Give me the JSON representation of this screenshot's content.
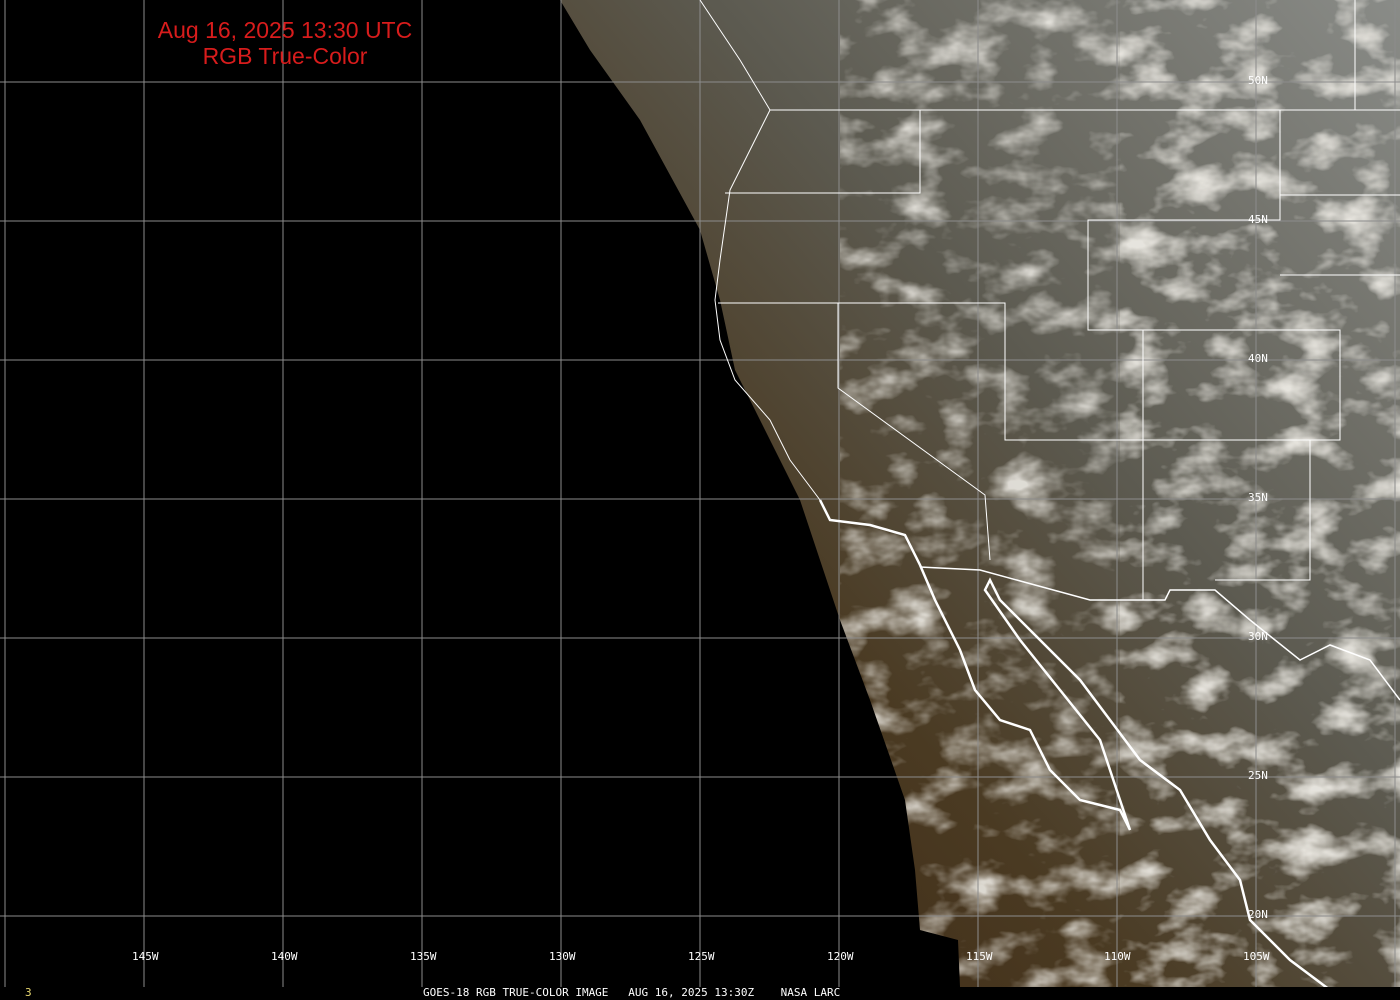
{
  "title": {
    "line1": "Aug 16, 2025 13:30 UTC",
    "line2": "RGB True-Color"
  },
  "latitude_labels": [
    "50N",
    "45N",
    "40N",
    "35N",
    "30N",
    "25N",
    "20N"
  ],
  "longitude_labels": [
    "145W",
    "140W",
    "135W",
    "130W",
    "125W",
    "120W",
    "115W",
    "110W",
    "105W"
  ],
  "footer": {
    "frame": "3",
    "caption": "GOES-18 RGB TRUE-COLOR IMAGE   AUG 16, 2025 13:30Z    NASA LARC"
  },
  "colors": {
    "title": "#d81c1c",
    "grid": "#8c8c8c",
    "borders": "#ffffff",
    "background": "#000000"
  }
}
